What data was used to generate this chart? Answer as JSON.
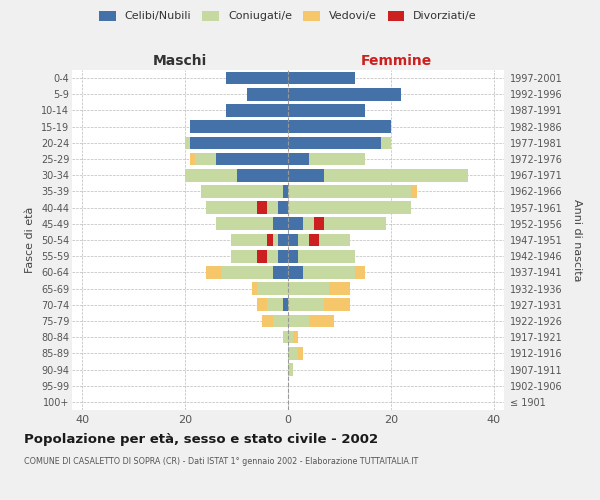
{
  "age_groups": [
    "100+",
    "95-99",
    "90-94",
    "85-89",
    "80-84",
    "75-79",
    "70-74",
    "65-69",
    "60-64",
    "55-59",
    "50-54",
    "45-49",
    "40-44",
    "35-39",
    "30-34",
    "25-29",
    "20-24",
    "15-19",
    "10-14",
    "5-9",
    "0-4"
  ],
  "birth_years": [
    "≤ 1901",
    "1902-1906",
    "1907-1911",
    "1912-1916",
    "1917-1921",
    "1922-1926",
    "1927-1931",
    "1932-1936",
    "1937-1941",
    "1942-1946",
    "1947-1951",
    "1952-1956",
    "1957-1961",
    "1962-1966",
    "1967-1971",
    "1972-1976",
    "1977-1981",
    "1982-1986",
    "1987-1991",
    "1992-1996",
    "1997-2001"
  ],
  "maschi": {
    "celibi": [
      0,
      0,
      0,
      0,
      0,
      0,
      1,
      0,
      3,
      2,
      2,
      3,
      2,
      1,
      10,
      14,
      19,
      19,
      12,
      8,
      12
    ],
    "coniugati": [
      0,
      0,
      0,
      0,
      1,
      3,
      3,
      6,
      10,
      9,
      9,
      11,
      14,
      16,
      10,
      4,
      1,
      0,
      0,
      0,
      0
    ],
    "vedovi": [
      0,
      0,
      0,
      0,
      0,
      2,
      2,
      1,
      3,
      0,
      0,
      0,
      0,
      0,
      0,
      1,
      0,
      0,
      0,
      0,
      0
    ],
    "divorziati": [
      0,
      0,
      0,
      0,
      0,
      0,
      0,
      0,
      0,
      2,
      1,
      0,
      2,
      0,
      0,
      0,
      0,
      0,
      0,
      0,
      0
    ]
  },
  "femmine": {
    "nubili": [
      0,
      0,
      0,
      0,
      0,
      0,
      0,
      0,
      3,
      2,
      2,
      3,
      0,
      0,
      7,
      4,
      18,
      20,
      15,
      22,
      13
    ],
    "coniugate": [
      0,
      0,
      1,
      2,
      1,
      4,
      7,
      8,
      10,
      11,
      10,
      16,
      24,
      24,
      28,
      11,
      2,
      0,
      0,
      0,
      0
    ],
    "vedove": [
      0,
      0,
      0,
      1,
      1,
      5,
      5,
      4,
      2,
      0,
      0,
      0,
      0,
      1,
      0,
      0,
      0,
      0,
      0,
      0,
      0
    ],
    "divorziate": [
      0,
      0,
      0,
      0,
      0,
      0,
      0,
      0,
      0,
      0,
      2,
      2,
      0,
      0,
      0,
      0,
      0,
      0,
      0,
      0,
      0
    ]
  },
  "colors": {
    "celibi": "#4472a8",
    "coniugati": "#c5d9a0",
    "vedovi": "#f5c76a",
    "divorziati": "#cc2020"
  },
  "xlim": 42,
  "title": "Popolazione per età, sesso e stato civile - 2002",
  "subtitle": "COMUNE DI CASALETTO DI SOPRA (CR) - Dati ISTAT 1° gennaio 2002 - Elaborazione TUTTAITALIA.IT",
  "ylabel_left": "Fasce di età",
  "ylabel_right": "Anni di nascita",
  "legend_labels": [
    "Celibi/Nubili",
    "Coniugati/e",
    "Vedovi/e",
    "Divorziati/e"
  ],
  "maschi_label": "Maschi",
  "femmine_label": "Femmine",
  "bg_color": "#f0f0f0",
  "plot_bg": "#ffffff"
}
